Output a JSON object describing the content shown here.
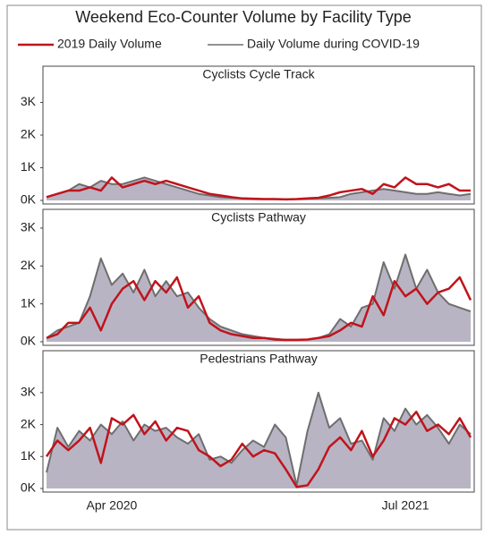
{
  "chart_data": {
    "type": "line",
    "title": "Weekend Eco-Counter Volume by Facility Type",
    "series": [
      {
        "name": "2019 Daily Volume",
        "color": "#c0141c"
      },
      {
        "name": "Daily Volume during COVID-19",
        "color": "#6e6e6e",
        "fill": "#b9b4c4"
      }
    ],
    "categories": [
      null,
      null,
      null,
      null,
      null,
      null,
      "Apr 2020",
      null,
      null,
      null,
      null,
      null,
      null,
      null,
      null,
      null,
      null,
      null,
      null,
      null,
      null,
      null,
      null,
      null,
      null,
      null,
      null,
      null,
      null,
      null,
      null,
      null,
      null,
      "Jul 2021",
      null,
      null,
      null,
      null,
      null,
      null
    ],
    "panels": [
      {
        "title": "Cyclists Cycle Track",
        "ylim": [
          0,
          4000
        ],
        "yticks": [
          {
            "value": 0,
            "label": "0K"
          },
          {
            "value": 1000,
            "label": "1K"
          },
          {
            "value": 2000,
            "label": "2K"
          },
          {
            "value": 3000,
            "label": "3K"
          }
        ],
        "series": [
          {
            "values": [
              100,
              200,
              300,
              300,
              400,
              300,
              700,
              400,
              500,
              600,
              500,
              600,
              500,
              400,
              300,
              200,
              150,
              100,
              60,
              50,
              40,
              40,
              30,
              40,
              60,
              80,
              150,
              250,
              300,
              350,
              200,
              500,
              400,
              700,
              500,
              500,
              400,
              500,
              300,
              300
            ]
          },
          {
            "values": [
              100,
              200,
              300,
              500,
              400,
              600,
              500,
              500,
              600,
              700,
              600,
              500,
              400,
              300,
              200,
              150,
              100,
              80,
              60,
              50,
              40,
              40,
              30,
              40,
              50,
              60,
              80,
              100,
              200,
              250,
              300,
              350,
              300,
              250,
              200,
              200,
              250,
              200,
              150,
              200
            ]
          }
        ]
      },
      {
        "title": "Cyclists Pathway",
        "ylim": [
          0,
          3400
        ],
        "yticks": [
          {
            "value": 0,
            "label": "0K"
          },
          {
            "value": 1000,
            "label": "1K"
          },
          {
            "value": 2000,
            "label": "2K"
          },
          {
            "value": 3000,
            "label": "3K"
          }
        ],
        "series": [
          {
            "values": [
              100,
              200,
              500,
              500,
              900,
              300,
              1000,
              1400,
              1600,
              1100,
              1600,
              1300,
              1700,
              900,
              1200,
              500,
              300,
              200,
              150,
              100,
              100,
              60,
              50,
              50,
              60,
              100,
              150,
              300,
              500,
              400,
              1200,
              700,
              1600,
              1200,
              1400,
              1000,
              1300,
              1400,
              1700,
              1100
            ]
          },
          {
            "values": [
              100,
              300,
              400,
              500,
              1200,
              2200,
              1500,
              1800,
              1300,
              1900,
              1200,
              1600,
              1200,
              1300,
              900,
              600,
              400,
              300,
              200,
              150,
              100,
              80,
              50,
              50,
              60,
              100,
              200,
              600,
              400,
              900,
              1000,
              2100,
              1400,
              2300,
              1400,
              1900,
              1300,
              1000,
              900,
              800
            ]
          }
        ]
      },
      {
        "title": "Pedestrians Pathway",
        "ylim": [
          0,
          4200
        ],
        "yticks": [
          {
            "value": 0,
            "label": "0K"
          },
          {
            "value": 1000,
            "label": "1K"
          },
          {
            "value": 2000,
            "label": "2K"
          },
          {
            "value": 3000,
            "label": "3K"
          }
        ],
        "series": [
          {
            "values": [
              1000,
              1500,
              1200,
              1500,
              1900,
              800,
              2200,
              2000,
              2300,
              1700,
              2100,
              1500,
              1900,
              1800,
              1200,
              1000,
              700,
              900,
              1400,
              1000,
              1200,
              1100,
              600,
              50,
              100,
              600,
              1300,
              1600,
              1200,
              1800,
              1000,
              1500,
              2200,
              2000,
              2400,
              1800,
              2000,
              1700,
              2200,
              1600
            ]
          },
          {
            "values": [
              500,
              1900,
              1300,
              1800,
              1500,
              2000,
              1700,
              2100,
              1500,
              2000,
              1800,
              1900,
              1600,
              1400,
              1700,
              900,
              1000,
              800,
              1200,
              1500,
              1300,
              2000,
              1600,
              100,
              1800,
              3000,
              1900,
              2200,
              1400,
              1500,
              900,
              2200,
              1800,
              2500,
              2000,
              2300,
              1900,
              1400,
              2000,
              1700
            ]
          }
        ]
      }
    ]
  }
}
